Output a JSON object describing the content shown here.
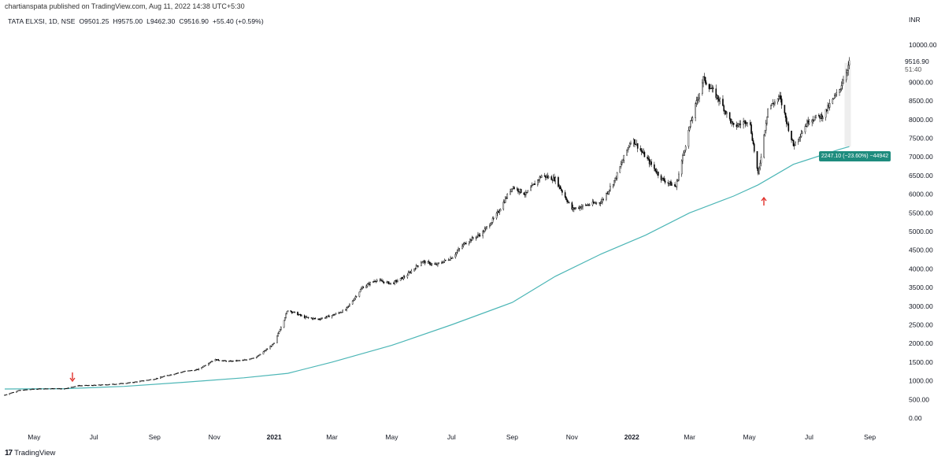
{
  "header": {
    "published": "chartianspata published on TradingView.com, Aug 11, 2022 14:38 UTC+5:30",
    "symbol": "TATA ELXSI, 1D, NSE",
    "open": "O9501.25",
    "high": "H9575.00",
    "low": "L9462.30",
    "close": "C9516.90",
    "change": "+55.40 (+0.59%)"
  },
  "currency": "INR",
  "last_price": {
    "value": "9516.90",
    "countdown": "51:40"
  },
  "measure_label": "2247.10 (−23.60%) −44942",
  "footer": {
    "logo": "17",
    "brand": "TradingView"
  },
  "colors": {
    "candle": "#000000",
    "ma": "#4cb6b6",
    "arrow": "#e0312b",
    "measure": "#1e8c7e",
    "measure_shade": "#eeeeee"
  },
  "icons": {
    "logo": "tradingview-logo-icon",
    "arrow": "arrow-icon"
  },
  "chart_data": {
    "type": "line",
    "series": [
      {
        "x": [
          "2020-04-01",
          "2020-04-15",
          "2020-05-01",
          "2020-05-15",
          "2020-06-01",
          "2020-06-15",
          "2020-07-01",
          "2020-07-15",
          "2020-08-01",
          "2020-08-15",
          "2020-09-01",
          "2020-09-15",
          "2020-10-01",
          "2020-10-15",
          "2020-11-01",
          "2020-11-15",
          "2020-12-01",
          "2020-12-15",
          "2021-01-01",
          "2021-01-15",
          "2021-02-01",
          "2021-02-15",
          "2021-03-01",
          "2021-03-15",
          "2021-04-01",
          "2021-04-15",
          "2021-05-01",
          "2021-05-15",
          "2021-06-01",
          "2021-06-15",
          "2021-07-01",
          "2021-07-15",
          "2021-08-01",
          "2021-08-15",
          "2021-09-01",
          "2021-09-15",
          "2021-10-01",
          "2021-10-15",
          "2021-11-01",
          "2021-11-15",
          "2021-12-01",
          "2021-12-15",
          "2022-01-01",
          "2022-01-15",
          "2022-02-01",
          "2022-02-15",
          "2022-03-01",
          "2022-03-15",
          "2022-04-01",
          "2022-04-15",
          "2022-05-01",
          "2022-05-10",
          "2022-05-20",
          "2022-06-01",
          "2022-06-15",
          "2022-07-01",
          "2022-07-15",
          "2022-08-01",
          "2022-08-11"
        ],
        "values": [
          620,
          740,
          780,
          790,
          790,
          870,
          880,
          900,
          930,
          980,
          1050,
          1150,
          1250,
          1300,
          1570,
          1520,
          1550,
          1650,
          2000,
          2900,
          2700,
          2650,
          2750,
          2900,
          3500,
          3700,
          3600,
          3800,
          4200,
          4100,
          4300,
          4700,
          4950,
          5400,
          6200,
          6000,
          6500,
          6400,
          5600,
          5700,
          5800,
          6400,
          7500,
          7000,
          6400,
          6200,
          7800,
          9100,
          8500,
          7800,
          8000,
          6500,
          8300,
          8600,
          7300,
          8000,
          8100,
          8800,
          9516.9
        ]
      },
      {
        "x": [
          "2020-04-01",
          "2020-06-01",
          "2020-08-01",
          "2020-10-01",
          "2020-12-01",
          "2021-01-15",
          "2021-03-01",
          "2021-05-01",
          "2021-07-01",
          "2021-09-01",
          "2021-10-15",
          "2021-12-01",
          "2022-01-15",
          "2022-03-01",
          "2022-04-15",
          "2022-05-10",
          "2022-06-15",
          "2022-08-01",
          "2022-08-11"
        ],
        "values": [
          780,
          790,
          850,
          960,
          1080,
          1200,
          1500,
          1950,
          2500,
          3100,
          3800,
          4400,
          4900,
          5500,
          5950,
          6250,
          6800,
          7200,
          7275
        ]
      }
    ],
    "xticks": [
      "May",
      "Jul",
      "Sep",
      "Nov",
      "2021",
      "Mar",
      "May",
      "Jul",
      "Sep",
      "Nov",
      "2022",
      "Mar",
      "May",
      "Jul",
      "Sep"
    ],
    "yticks": [
      "0.00",
      "500.00",
      "1000.00",
      "1500.00",
      "2000.00",
      "2500.00",
      "3000.00",
      "3500.00",
      "4000.00",
      "4500.00",
      "5000.00",
      "5500.00",
      "6000.00",
      "6500.00",
      "7000.00",
      "7500.00",
      "8000.00",
      "8500.00",
      "9000.00",
      "10000.00"
    ],
    "ylim": [
      0,
      10000
    ],
    "grid": false
  }
}
